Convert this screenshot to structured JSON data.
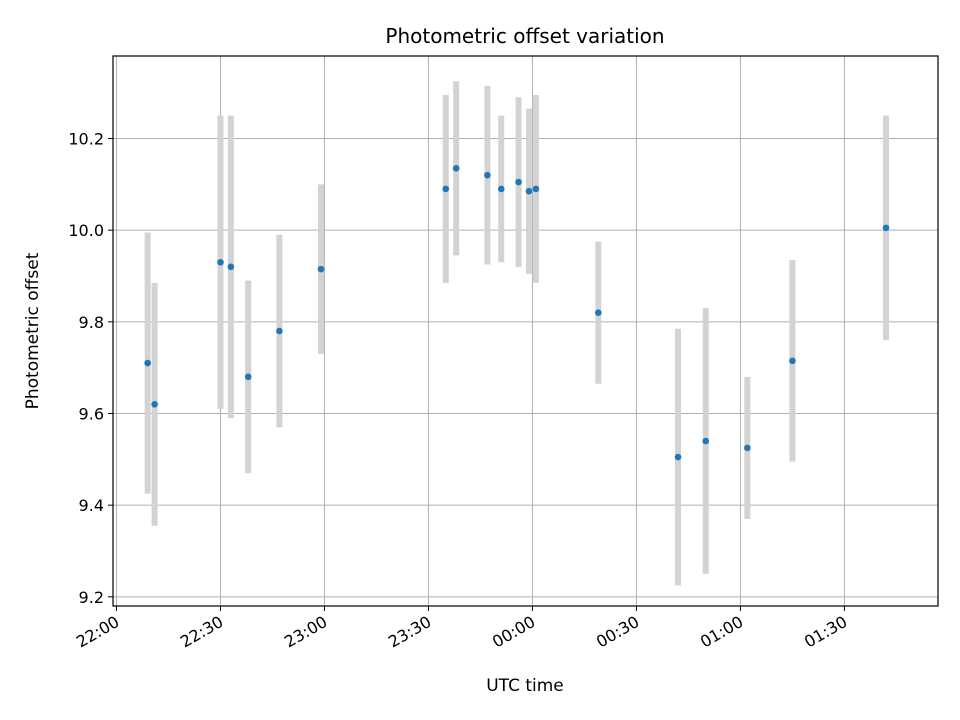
{
  "chart_data": {
    "type": "scatter",
    "title": "Photometric offset variation",
    "xlabel": "UTC time",
    "ylabel": "Photometric offset",
    "x_ticks": [
      "22:00",
      "22:30",
      "23:00",
      "23:30",
      "00:00",
      "00:30",
      "01:00",
      "01:30"
    ],
    "y_ticks": [
      "9.2",
      "9.4",
      "9.6",
      "9.8",
      "10.0",
      "10.2"
    ],
    "xlim": [
      "21:59",
      "01:57"
    ],
    "ylim": [
      9.18,
      10.38
    ],
    "grid": true,
    "point_color": "#1f77b4",
    "errorbar_color": "#d3d3d3",
    "series": [
      {
        "points": [
          {
            "x": "22:09",
            "y": 9.71,
            "err": 0.285
          },
          {
            "x": "22:11",
            "y": 9.62,
            "err": 0.265
          },
          {
            "x": "22:30",
            "y": 9.93,
            "err": 0.32
          },
          {
            "x": "22:33",
            "y": 9.92,
            "err": 0.33
          },
          {
            "x": "22:38",
            "y": 9.68,
            "err": 0.21
          },
          {
            "x": "22:47",
            "y": 9.78,
            "err": 0.21
          },
          {
            "x": "22:59",
            "y": 9.915,
            "err": 0.185
          },
          {
            "x": "23:35",
            "y": 10.09,
            "err": 0.205
          },
          {
            "x": "23:38",
            "y": 10.135,
            "err": 0.19
          },
          {
            "x": "23:47",
            "y": 10.12,
            "err": 0.195
          },
          {
            "x": "23:51",
            "y": 10.09,
            "err": 0.16
          },
          {
            "x": "23:56",
            "y": 10.105,
            "err": 0.185
          },
          {
            "x": "23:59",
            "y": 10.085,
            "err": 0.18
          },
          {
            "x": "00:01",
            "y": 10.09,
            "err": 0.205
          },
          {
            "x": "00:19",
            "y": 9.82,
            "err": 0.155
          },
          {
            "x": "00:42",
            "y": 9.505,
            "err": 0.28
          },
          {
            "x": "00:50",
            "y": 9.54,
            "err": 0.29
          },
          {
            "x": "01:02",
            "y": 9.525,
            "err": 0.155
          },
          {
            "x": "01:15",
            "y": 9.715,
            "err": 0.22
          },
          {
            "x": "01:42",
            "y": 10.005,
            "err": 0.245
          }
        ]
      }
    ]
  }
}
